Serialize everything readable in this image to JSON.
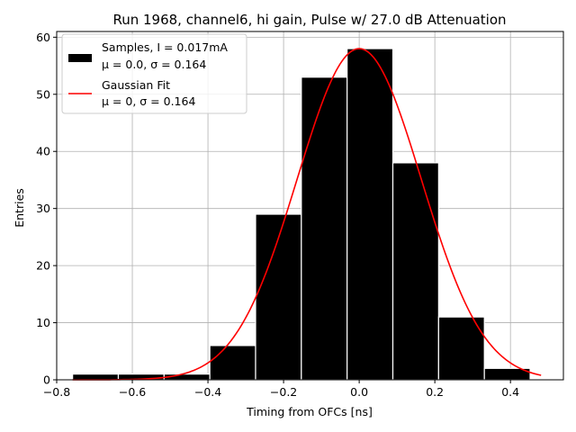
{
  "chart_data": {
    "type": "bar",
    "title": "Run 1968, channel6, hi gain, Pulse w/ 27.0 dB Attenuation",
    "xlabel": "Timing from OFCs [ns]",
    "ylabel": "Entries",
    "xlim": [
      -0.8,
      0.54
    ],
    "ylim": [
      0,
      61
    ],
    "xticks": [
      -0.8,
      -0.6,
      -0.4,
      -0.2,
      0.0,
      0.2,
      0.4
    ],
    "xtick_labels": [
      "−0.8",
      "−0.6",
      "−0.4",
      "−0.2",
      "0.0",
      "0.2",
      "0.4"
    ],
    "yticks": [
      0,
      10,
      20,
      30,
      40,
      50,
      60
    ],
    "ytick_labels": [
      "0",
      "10",
      "20",
      "30",
      "40",
      "50",
      "60"
    ],
    "grid": true,
    "legend_position": "top-left",
    "histogram": {
      "name": "Samples, I = 0.017mA\nμ = 0.0, σ = 0.164",
      "legend_line1": "Samples, I = 0.017mA",
      "legend_line2": "μ = 0.0, σ = 0.164",
      "color": "#000000",
      "bins": [
        {
          "x0": -0.758,
          "x1": -0.637,
          "count": 1
        },
        {
          "x0": -0.637,
          "x1": -0.516,
          "count": 1
        },
        {
          "x0": -0.516,
          "x1": -0.395,
          "count": 1
        },
        {
          "x0": -0.395,
          "x1": -0.274,
          "count": 6
        },
        {
          "x0": -0.274,
          "x1": -0.153,
          "count": 29
        },
        {
          "x0": -0.153,
          "x1": -0.032,
          "count": 53
        },
        {
          "x0": -0.032,
          "x1": 0.089,
          "count": 58
        },
        {
          "x0": 0.089,
          "x1": 0.21,
          "count": 38
        },
        {
          "x0": 0.21,
          "x1": 0.331,
          "count": 11
        },
        {
          "x0": 0.331,
          "x1": 0.452,
          "count": 2
        }
      ]
    },
    "fit": {
      "name": "Gaussian Fit\nμ = 0, σ = 0.164",
      "legend_line1": "Gaussian Fit",
      "legend_line2": "μ = 0, σ = 0.164",
      "color": "#ff0000",
      "amplitude": 58,
      "mu": 0.0,
      "sigma": 0.164,
      "x_range": [
        -0.758,
        0.481
      ]
    }
  }
}
